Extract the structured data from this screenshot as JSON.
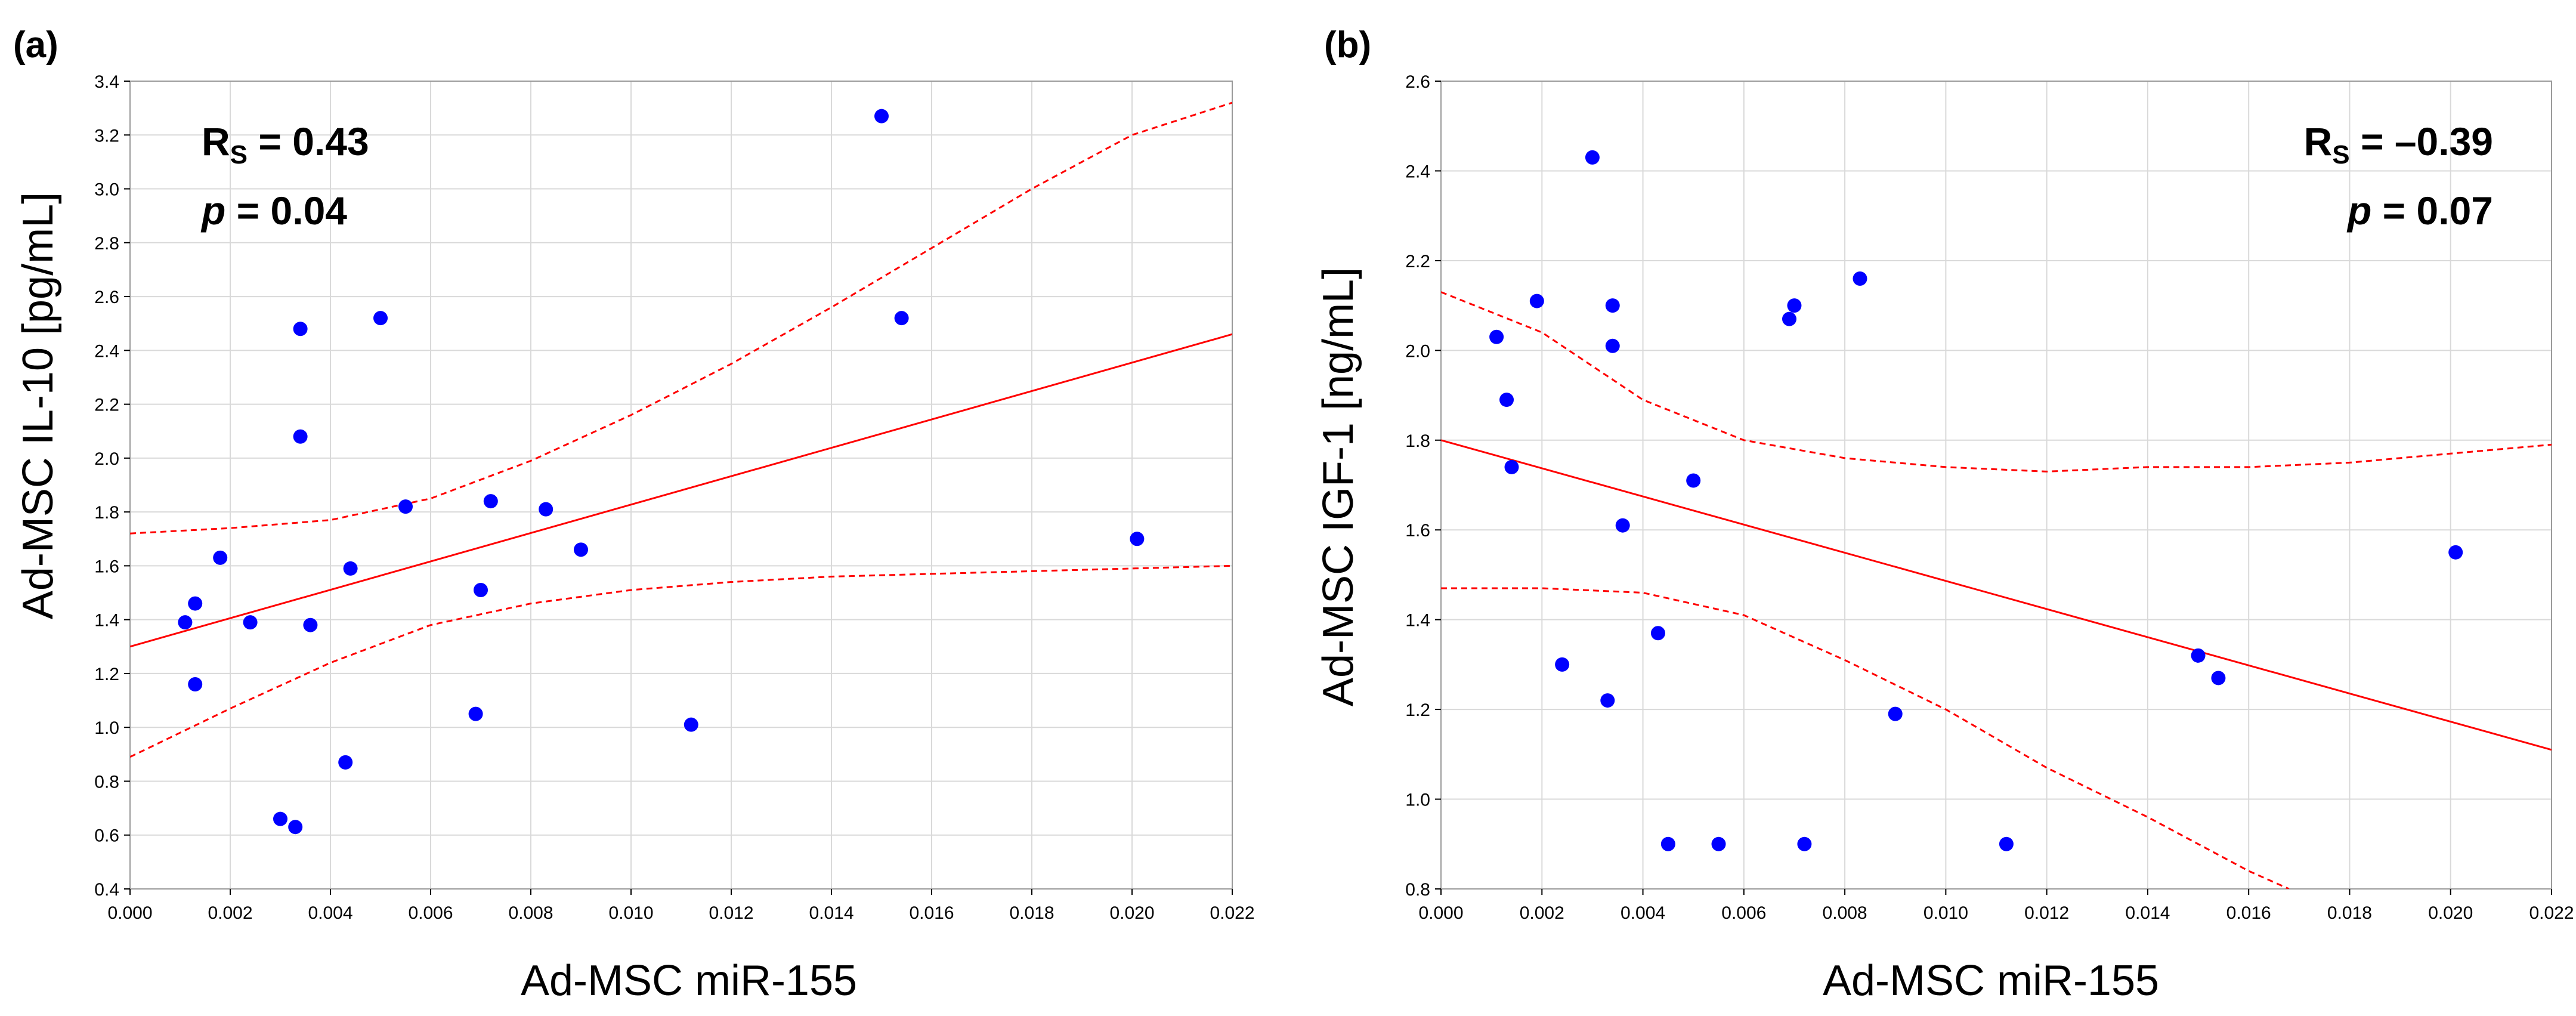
{
  "colors": {
    "point": "#0000ff",
    "fit": "#ff0000",
    "grid": "#d9d9d9",
    "frame": "#9a9a9a"
  },
  "chart_data": [
    {
      "panel": "(a)",
      "type": "scatter",
      "xlabel": "Ad-MSC miR-155",
      "ylabel": "Ad-MSC IL-10 [pg/mL]",
      "xlim": [
        0.0,
        0.022
      ],
      "ylim": [
        0.4,
        3.4
      ],
      "x_ticks": [
        "0.000",
        "0.002",
        "0.004",
        "0.006",
        "0.008",
        "0.010",
        "0.012",
        "0.014",
        "0.016",
        "0.018",
        "0.020",
        "0.022"
      ],
      "y_ticks": [
        "0.4",
        "0.6",
        "0.8",
        "1.0",
        "1.2",
        "1.4",
        "1.6",
        "1.8",
        "2.0",
        "2.2",
        "2.4",
        "2.6",
        "2.8",
        "3.0",
        "3.2",
        "3.4"
      ],
      "grid": true,
      "stats": {
        "r_main": "R",
        "r_sub": "S",
        "r_value": " = 0.43",
        "p_symbol": "p",
        "p_value": " = 0.04",
        "position": "top-left"
      },
      "points": [
        {
          "x": 0.0011,
          "y": 1.39
        },
        {
          "x": 0.0013,
          "y": 1.46
        },
        {
          "x": 0.0013,
          "y": 1.16
        },
        {
          "x": 0.0018,
          "y": 1.63
        },
        {
          "x": 0.0024,
          "y": 1.39
        },
        {
          "x": 0.003,
          "y": 0.66
        },
        {
          "x": 0.0033,
          "y": 0.63
        },
        {
          "x": 0.0034,
          "y": 2.48
        },
        {
          "x": 0.0034,
          "y": 2.08
        },
        {
          "x": 0.0036,
          "y": 1.38
        },
        {
          "x": 0.0043,
          "y": 0.87
        },
        {
          "x": 0.0044,
          "y": 1.59
        },
        {
          "x": 0.005,
          "y": 2.52
        },
        {
          "x": 0.0055,
          "y": 1.82
        },
        {
          "x": 0.0069,
          "y": 1.05
        },
        {
          "x": 0.007,
          "y": 1.51
        },
        {
          "x": 0.0072,
          "y": 1.84
        },
        {
          "x": 0.0083,
          "y": 1.81
        },
        {
          "x": 0.009,
          "y": 1.66
        },
        {
          "x": 0.0112,
          "y": 1.01
        },
        {
          "x": 0.015,
          "y": 3.27
        },
        {
          "x": 0.0154,
          "y": 2.52
        },
        {
          "x": 0.0201,
          "y": 1.7
        }
      ],
      "fit_line": [
        {
          "x": 0.0,
          "y": 1.3
        },
        {
          "x": 0.022,
          "y": 2.46
        }
      ],
      "ci_upper": [
        {
          "x": 0.0,
          "y": 1.72
        },
        {
          "x": 0.002,
          "y": 1.74
        },
        {
          "x": 0.004,
          "y": 1.77
        },
        {
          "x": 0.006,
          "y": 1.85
        },
        {
          "x": 0.008,
          "y": 1.99
        },
        {
          "x": 0.01,
          "y": 2.16
        },
        {
          "x": 0.012,
          "y": 2.35
        },
        {
          "x": 0.014,
          "y": 2.56
        },
        {
          "x": 0.016,
          "y": 2.78
        },
        {
          "x": 0.018,
          "y": 3.0
        },
        {
          "x": 0.02,
          "y": 3.2
        },
        {
          "x": 0.022,
          "y": 3.32
        }
      ],
      "ci_lower": [
        {
          "x": 0.0,
          "y": 0.89
        },
        {
          "x": 0.002,
          "y": 1.07
        },
        {
          "x": 0.004,
          "y": 1.24
        },
        {
          "x": 0.006,
          "y": 1.38
        },
        {
          "x": 0.008,
          "y": 1.46
        },
        {
          "x": 0.01,
          "y": 1.51
        },
        {
          "x": 0.012,
          "y": 1.54
        },
        {
          "x": 0.014,
          "y": 1.56
        },
        {
          "x": 0.016,
          "y": 1.57
        },
        {
          "x": 0.018,
          "y": 1.58
        },
        {
          "x": 0.02,
          "y": 1.59
        },
        {
          "x": 0.022,
          "y": 1.6
        }
      ]
    },
    {
      "panel": "(b)",
      "type": "scatter",
      "xlabel": "Ad-MSC miR-155",
      "ylabel": "Ad-MSC IGF-1 [ng/mL]",
      "xlim": [
        0.0,
        0.022
      ],
      "ylim": [
        0.8,
        2.6
      ],
      "x_ticks": [
        "0.000",
        "0.002",
        "0.004",
        "0.006",
        "0.008",
        "0.010",
        "0.012",
        "0.014",
        "0.016",
        "0.018",
        "0.020",
        "0.022"
      ],
      "y_ticks": [
        "0.8",
        "1.0",
        "1.2",
        "1.4",
        "1.6",
        "1.8",
        "2.0",
        "2.2",
        "2.4",
        "2.6"
      ],
      "grid": true,
      "stats": {
        "r_main": "R",
        "r_sub": "S",
        "r_value": " = –0.39",
        "p_symbol": "p",
        "p_value": " = 0.07",
        "position": "top-right"
      },
      "points": [
        {
          "x": 0.0011,
          "y": 2.03
        },
        {
          "x": 0.0013,
          "y": 1.89
        },
        {
          "x": 0.0014,
          "y": 1.74
        },
        {
          "x": 0.0019,
          "y": 2.11
        },
        {
          "x": 0.0024,
          "y": 1.3
        },
        {
          "x": 0.003,
          "y": 2.43
        },
        {
          "x": 0.0033,
          "y": 1.22
        },
        {
          "x": 0.0034,
          "y": 2.1
        },
        {
          "x": 0.0034,
          "y": 2.01
        },
        {
          "x": 0.0036,
          "y": 1.61
        },
        {
          "x": 0.0043,
          "y": 1.37
        },
        {
          "x": 0.0045,
          "y": 0.9
        },
        {
          "x": 0.005,
          "y": 1.71
        },
        {
          "x": 0.0055,
          "y": 0.9
        },
        {
          "x": 0.0069,
          "y": 2.07
        },
        {
          "x": 0.007,
          "y": 2.1
        },
        {
          "x": 0.0072,
          "y": 0.9
        },
        {
          "x": 0.0083,
          "y": 2.16
        },
        {
          "x": 0.009,
          "y": 1.19
        },
        {
          "x": 0.0112,
          "y": 0.9
        },
        {
          "x": 0.015,
          "y": 1.32
        },
        {
          "x": 0.0154,
          "y": 1.27
        },
        {
          "x": 0.0201,
          "y": 1.55
        }
      ],
      "fit_line": [
        {
          "x": 0.0,
          "y": 1.8
        },
        {
          "x": 0.022,
          "y": 1.11
        }
      ],
      "ci_upper": [
        {
          "x": 0.0,
          "y": 2.13
        },
        {
          "x": 0.002,
          "y": 2.04
        },
        {
          "x": 0.004,
          "y": 1.89
        },
        {
          "x": 0.006,
          "y": 1.8
        },
        {
          "x": 0.008,
          "y": 1.76
        },
        {
          "x": 0.01,
          "y": 1.74
        },
        {
          "x": 0.012,
          "y": 1.73
        },
        {
          "x": 0.014,
          "y": 1.74
        },
        {
          "x": 0.016,
          "y": 1.74
        },
        {
          "x": 0.018,
          "y": 1.75
        },
        {
          "x": 0.02,
          "y": 1.77
        },
        {
          "x": 0.022,
          "y": 1.79
        }
      ],
      "ci_lower": [
        {
          "x": 0.0,
          "y": 1.47
        },
        {
          "x": 0.002,
          "y": 1.47
        },
        {
          "x": 0.004,
          "y": 1.46
        },
        {
          "x": 0.006,
          "y": 1.41
        },
        {
          "x": 0.008,
          "y": 1.31
        },
        {
          "x": 0.01,
          "y": 1.2
        },
        {
          "x": 0.012,
          "y": 1.07
        },
        {
          "x": 0.014,
          "y": 0.96
        },
        {
          "x": 0.016,
          "y": 0.84
        },
        {
          "x": 0.0168,
          "y": 0.8
        }
      ]
    }
  ]
}
